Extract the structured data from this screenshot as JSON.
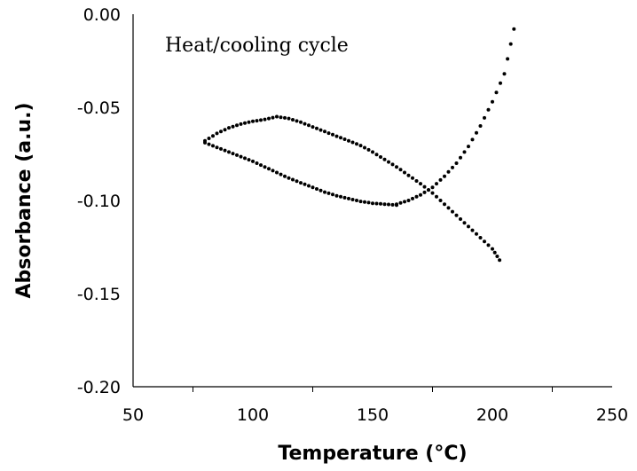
{
  "chart_data": {
    "type": "scatter",
    "title": "",
    "annotation": "Heat/cooling cycle",
    "xlabel": "Temperature (°C)",
    "ylabel": "Absorbance (a.u.)",
    "xlim": [
      50,
      250
    ],
    "ylim": [
      -0.2,
      0.0
    ],
    "x_ticks": [
      "50",
      "100",
      "150",
      "200",
      "250"
    ],
    "y_ticks": [
      "0.00",
      "-0.05",
      "-0.10",
      "-0.15",
      "-0.20"
    ],
    "x_tick_values": [
      50,
      100,
      150,
      200,
      250
    ],
    "y_tick_values": [
      0.0,
      -0.05,
      -0.1,
      -0.15,
      -0.2
    ],
    "grid": false,
    "legend": "none",
    "marker_color": "#000000",
    "segments": [
      {
        "points": [
          [
            80,
            -0.069
          ],
          [
            85,
            -0.0715
          ],
          [
            90,
            -0.074
          ],
          [
            95,
            -0.0765
          ],
          [
            100,
            -0.079
          ],
          [
            105,
            -0.082
          ],
          [
            110,
            -0.085
          ],
          [
            115,
            -0.088
          ],
          [
            120,
            -0.0905
          ],
          [
            125,
            -0.093
          ],
          [
            130,
            -0.0955
          ],
          [
            135,
            -0.0975
          ],
          [
            140,
            -0.099
          ],
          [
            145,
            -0.1005
          ],
          [
            150,
            -0.1015
          ],
          [
            155,
            -0.102
          ],
          [
            160,
            -0.1025
          ]
        ]
      },
      {
        "points": [
          [
            160,
            -0.102
          ],
          [
            165,
            -0.1
          ],
          [
            170,
            -0.097
          ],
          [
            175,
            -0.093
          ],
          [
            180,
            -0.087
          ],
          [
            185,
            -0.08
          ],
          [
            190,
            -0.071
          ],
          [
            195,
            -0.06
          ],
          [
            200,
            -0.047
          ],
          [
            205,
            -0.032
          ],
          [
            209,
            -0.008
          ]
        ]
      },
      {
        "points": [
          [
            80,
            -0.068
          ],
          [
            85,
            -0.064
          ],
          [
            90,
            -0.061
          ],
          [
            95,
            -0.059
          ],
          [
            100,
            -0.0575
          ],
          [
            105,
            -0.0565
          ],
          [
            110,
            -0.055
          ],
          [
            115,
            -0.056
          ],
          [
            120,
            -0.058
          ],
          [
            125,
            -0.0605
          ],
          [
            130,
            -0.063
          ],
          [
            135,
            -0.0655
          ],
          [
            140,
            -0.068
          ],
          [
            145,
            -0.0705
          ],
          [
            150,
            -0.074
          ],
          [
            155,
            -0.078
          ],
          [
            160,
            -0.082
          ],
          [
            165,
            -0.0865
          ],
          [
            170,
            -0.091
          ],
          [
            175,
            -0.096
          ],
          [
            180,
            -0.102
          ],
          [
            185,
            -0.108
          ],
          [
            190,
            -0.114
          ],
          [
            195,
            -0.12
          ],
          [
            200,
            -0.126
          ],
          [
            203,
            -0.132
          ]
        ]
      }
    ]
  }
}
